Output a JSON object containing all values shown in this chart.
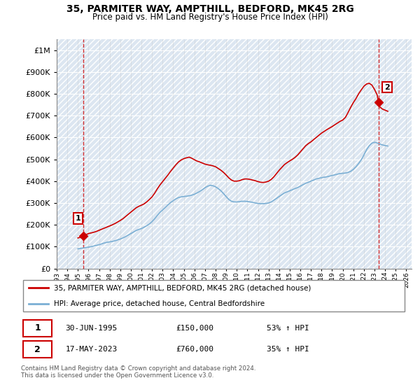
{
  "title": "35, PARMITER WAY, AMPTHILL, BEDFORD, MK45 2RG",
  "subtitle": "Price paid vs. HM Land Registry's House Price Index (HPI)",
  "ytick_values": [
    0,
    100000,
    200000,
    300000,
    400000,
    500000,
    600000,
    700000,
    800000,
    900000,
    1000000
  ],
  "ylim": [
    0,
    1050000
  ],
  "xlim_start": 1993.0,
  "xlim_end": 2026.5,
  "red_line_color": "#cc0000",
  "blue_line_color": "#7bafd4",
  "sale1_date": "30-JUN-1995",
  "sale1_price": "£150,000",
  "sale1_hpi": "53% ↑ HPI",
  "sale2_date": "17-MAY-2023",
  "sale2_price": "£760,000",
  "sale2_hpi": "35% ↑ HPI",
  "legend_label1": "35, PARMITER WAY, AMPTHILL, BEDFORD, MK45 2RG (detached house)",
  "legend_label2": "HPI: Average price, detached house, Central Bedfordshire",
  "footer": "Contains HM Land Registry data © Crown copyright and database right 2024.\nThis data is licensed under the Open Government Licence v3.0.",
  "sale1_x": 1995.5,
  "sale1_y": 150000,
  "sale2_x": 2023.38,
  "sale2_y": 760000,
  "vline1_x": 1995.5,
  "vline2_x": 2023.38,
  "hpi_x": [
    1995.0,
    1995.25,
    1995.5,
    1995.75,
    1996.0,
    1996.25,
    1996.5,
    1996.75,
    1997.0,
    1997.25,
    1997.5,
    1997.75,
    1998.0,
    1998.25,
    1998.5,
    1998.75,
    1999.0,
    1999.25,
    1999.5,
    1999.75,
    2000.0,
    2000.25,
    2000.5,
    2000.75,
    2001.0,
    2001.25,
    2001.5,
    2001.75,
    2002.0,
    2002.25,
    2002.5,
    2002.75,
    2003.0,
    2003.25,
    2003.5,
    2003.75,
    2004.0,
    2004.25,
    2004.5,
    2004.75,
    2005.0,
    2005.25,
    2005.5,
    2005.75,
    2006.0,
    2006.25,
    2006.5,
    2006.75,
    2007.0,
    2007.25,
    2007.5,
    2007.75,
    2008.0,
    2008.25,
    2008.5,
    2008.75,
    2009.0,
    2009.25,
    2009.5,
    2009.75,
    2010.0,
    2010.25,
    2010.5,
    2010.75,
    2011.0,
    2011.25,
    2011.5,
    2011.75,
    2012.0,
    2012.25,
    2012.5,
    2012.75,
    2013.0,
    2013.25,
    2013.5,
    2013.75,
    2014.0,
    2014.25,
    2014.5,
    2014.75,
    2015.0,
    2015.25,
    2015.5,
    2015.75,
    2016.0,
    2016.25,
    2016.5,
    2016.75,
    2017.0,
    2017.25,
    2017.5,
    2017.75,
    2018.0,
    2018.25,
    2018.5,
    2018.75,
    2019.0,
    2019.25,
    2019.5,
    2019.75,
    2020.0,
    2020.25,
    2020.5,
    2020.75,
    2021.0,
    2021.25,
    2021.5,
    2021.75,
    2022.0,
    2022.25,
    2022.5,
    2022.75,
    2023.0,
    2023.25,
    2023.5,
    2023.75,
    2024.0,
    2024.25
  ],
  "hpi_y": [
    90000,
    92000,
    94000,
    96000,
    98000,
    100000,
    103000,
    106000,
    109000,
    113000,
    117000,
    120000,
    122000,
    124000,
    127000,
    131000,
    135000,
    140000,
    146000,
    153000,
    160000,
    167000,
    174000,
    179000,
    183000,
    189000,
    196000,
    204000,
    215000,
    228000,
    243000,
    257000,
    268000,
    279000,
    291000,
    302000,
    311000,
    319000,
    325000,
    328000,
    330000,
    331000,
    333000,
    336000,
    340000,
    346000,
    353000,
    361000,
    370000,
    377000,
    381000,
    379000,
    374000,
    366000,
    356000,
    343000,
    329000,
    316000,
    308000,
    305000,
    305000,
    306000,
    308000,
    308000,
    307000,
    305000,
    303000,
    300000,
    298000,
    297000,
    297000,
    298000,
    300000,
    305000,
    313000,
    321000,
    330000,
    338000,
    346000,
    351000,
    356000,
    361000,
    366000,
    371000,
    377000,
    384000,
    390000,
    395000,
    400000,
    405000,
    410000,
    413000,
    416000,
    418000,
    420000,
    423000,
    426000,
    429000,
    432000,
    435000,
    436000,
    437000,
    440000,
    445000,
    454000,
    466000,
    481000,
    498000,
    520000,
    544000,
    562000,
    574000,
    578000,
    575000,
    570000,
    566000,
    563000,
    561000
  ],
  "red_x": [
    1995.0,
    1995.25,
    1995.5,
    1995.75,
    1996.0,
    1996.25,
    1996.5,
    1996.75,
    1997.0,
    1997.25,
    1997.5,
    1997.75,
    1998.0,
    1998.25,
    1998.5,
    1998.75,
    1999.0,
    1999.25,
    1999.5,
    1999.75,
    2000.0,
    2000.25,
    2000.5,
    2000.75,
    2001.0,
    2001.25,
    2001.5,
    2001.75,
    2002.0,
    2002.25,
    2002.5,
    2002.75,
    2003.0,
    2003.25,
    2003.5,
    2003.75,
    2004.0,
    2004.25,
    2004.5,
    2004.75,
    2005.0,
    2005.25,
    2005.5,
    2005.75,
    2006.0,
    2006.25,
    2006.5,
    2006.75,
    2007.0,
    2007.25,
    2007.5,
    2007.75,
    2008.0,
    2008.25,
    2008.5,
    2008.75,
    2009.0,
    2009.25,
    2009.5,
    2009.75,
    2010.0,
    2010.25,
    2010.5,
    2010.75,
    2011.0,
    2011.25,
    2011.5,
    2011.75,
    2012.0,
    2012.25,
    2012.5,
    2012.75,
    2013.0,
    2013.25,
    2013.5,
    2013.75,
    2014.0,
    2014.25,
    2014.5,
    2014.75,
    2015.0,
    2015.25,
    2015.5,
    2015.75,
    2016.0,
    2016.25,
    2016.5,
    2016.75,
    2017.0,
    2017.25,
    2017.5,
    2017.75,
    2018.0,
    2018.25,
    2018.5,
    2018.75,
    2019.0,
    2019.25,
    2019.5,
    2019.75,
    2020.0,
    2020.25,
    2020.5,
    2020.75,
    2021.0,
    2021.25,
    2021.5,
    2021.75,
    2022.0,
    2022.25,
    2022.5,
    2022.75,
    2023.0,
    2023.25,
    2023.38,
    2023.5,
    2023.75,
    2024.0,
    2024.25
  ],
  "red_y": [
    140000,
    143000,
    150000,
    155000,
    160000,
    163000,
    166000,
    170000,
    175000,
    180000,
    185000,
    190000,
    195000,
    200000,
    206000,
    213000,
    220000,
    228000,
    238000,
    248000,
    258000,
    268000,
    278000,
    285000,
    290000,
    296000,
    305000,
    316000,
    328000,
    345000,
    365000,
    383000,
    398000,
    413000,
    428000,
    445000,
    460000,
    475000,
    488000,
    497000,
    503000,
    507000,
    510000,
    505000,
    498000,
    492000,
    488000,
    483000,
    478000,
    475000,
    473000,
    470000,
    466000,
    458000,
    450000,
    440000,
    428000,
    415000,
    405000,
    400000,
    400000,
    402000,
    407000,
    410000,
    410000,
    408000,
    405000,
    402000,
    398000,
    395000,
    394000,
    396000,
    400000,
    408000,
    420000,
    435000,
    450000,
    463000,
    476000,
    485000,
    493000,
    500000,
    509000,
    520000,
    534000,
    548000,
    562000,
    572000,
    580000,
    590000,
    600000,
    610000,
    620000,
    628000,
    636000,
    643000,
    650000,
    658000,
    666000,
    674000,
    680000,
    692000,
    714000,
    738000,
    760000,
    778000,
    800000,
    818000,
    835000,
    845000,
    848000,
    840000,
    820000,
    795000,
    760000,
    740000,
    730000,
    725000,
    720000
  ]
}
